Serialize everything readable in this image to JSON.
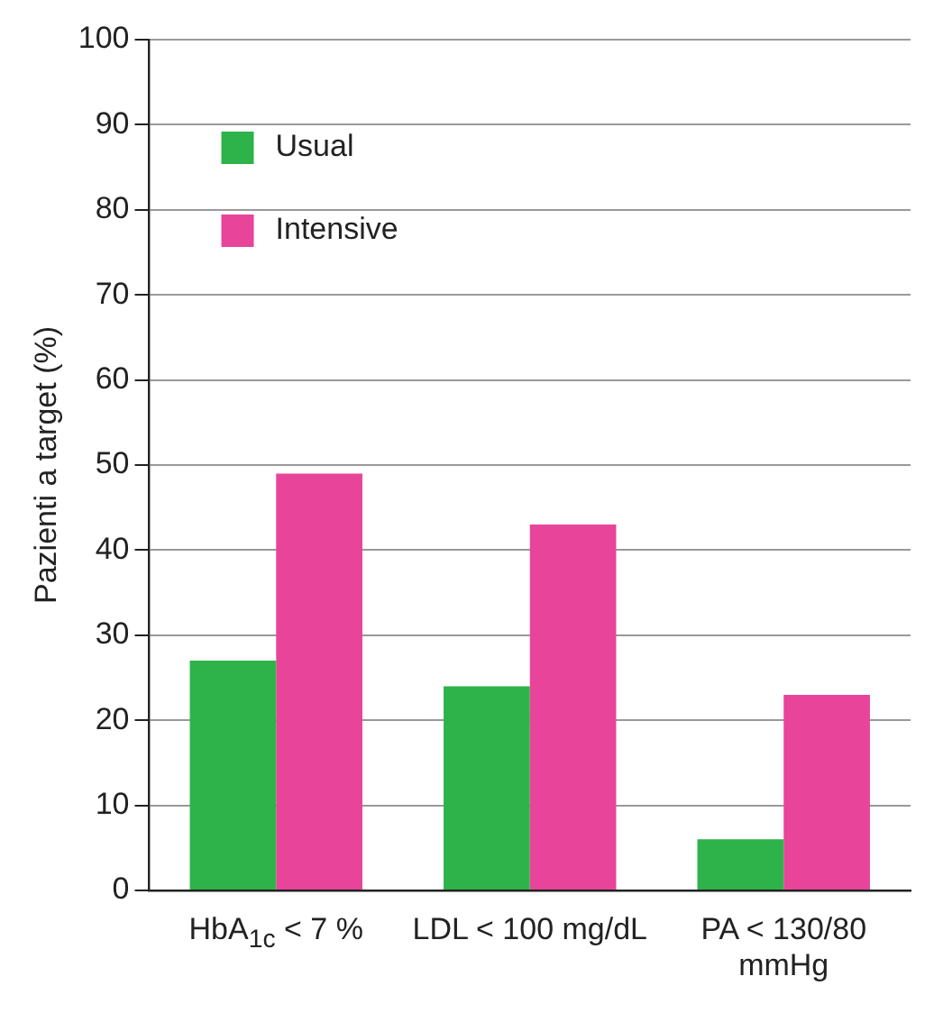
{
  "chart_data": {
    "type": "bar",
    "ylabel": "Pazienti a target (%)",
    "categories": [
      "HbA$_{1c}$ < 7 %",
      "LDL < 100 mg/dL",
      "PA < 130/80 mmHg"
    ],
    "series": [
      {
        "name": "Usual",
        "color": "#2db34a",
        "values": [
          27,
          24,
          6
        ]
      },
      {
        "name": "Intensive",
        "color": "#e8449a",
        "values": [
          49,
          43,
          23
        ]
      }
    ],
    "ylim": [
      0,
      100
    ],
    "yticks": [
      0,
      10,
      20,
      30,
      40,
      50,
      60,
      70,
      80,
      90,
      100
    ],
    "grid": "y",
    "legend": "top left"
  }
}
